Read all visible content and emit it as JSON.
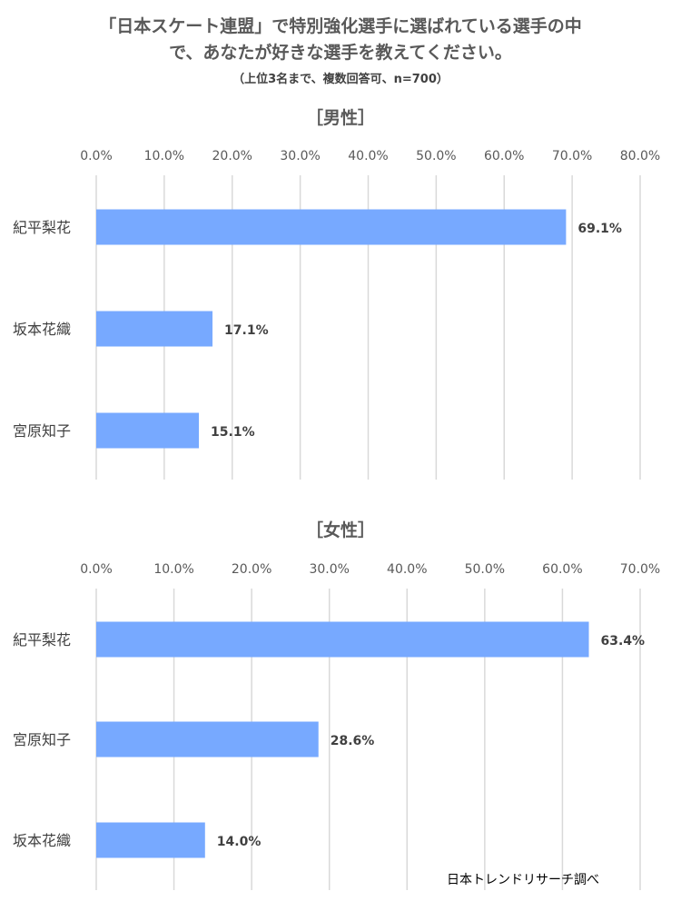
{
  "title": {
    "line1": "「日本スケート連盟」で特別強化選手に選ばれている選手の中",
    "line2": "で、あなたが好きな選手を教えてください。",
    "note": "（上位3名まで、複数回答可、n=700）"
  },
  "footer": "日本トレンドリサーチ調べ",
  "colors": {
    "bar": "#77a9ff",
    "grid": "#d9d9d9"
  },
  "chart_data": [
    {
      "type": "bar",
      "orientation": "horizontal",
      "title": "［男性］",
      "categories": [
        "紀平梨花",
        "坂本花織",
        "宮原知子"
      ],
      "values": [
        69.1,
        17.1,
        15.1
      ],
      "value_labels": [
        "69.1%",
        "17.1%",
        "15.1%"
      ],
      "xlim": [
        0,
        80
      ],
      "ticks": [
        "0.0%",
        "10.0%",
        "20.0%",
        "30.0%",
        "40.0%",
        "50.0%",
        "60.0%",
        "70.0%",
        "80.0%"
      ],
      "grid": true
    },
    {
      "type": "bar",
      "orientation": "horizontal",
      "title": "［女性］",
      "categories": [
        "紀平梨花",
        "宮原知子",
        "坂本花織"
      ],
      "values": [
        63.4,
        28.6,
        14.0
      ],
      "value_labels": [
        "63.4%",
        "28.6%",
        "14.0%"
      ],
      "xlim": [
        0,
        70
      ],
      "ticks": [
        "0.0%",
        "10.0%",
        "20.0%",
        "30.0%",
        "40.0%",
        "50.0%",
        "60.0%",
        "70.0%"
      ],
      "grid": true
    }
  ]
}
